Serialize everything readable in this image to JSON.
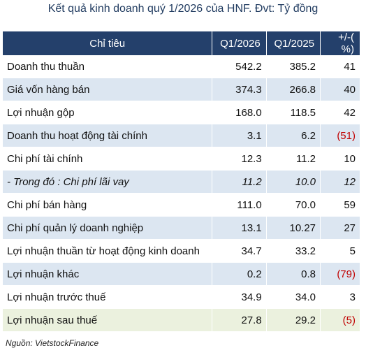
{
  "title": "Kết quả kinh doanh quý 1/2026 của HNF. Đvt: Tỷ đồng",
  "table": {
    "headers": [
      "Chỉ tiêu",
      "Q1/2026",
      "Q1/2025",
      "+/-( %)"
    ],
    "rows": [
      {
        "label": "Doanh thu thuần",
        "q1_2026": "542.2",
        "q1_2025": "385.2",
        "change": "41",
        "negative": false,
        "italic": false
      },
      {
        "label": "Giá vốn hàng bán",
        "q1_2026": "374.3",
        "q1_2025": "266.8",
        "change": "40",
        "negative": false,
        "italic": false
      },
      {
        "label": "Lợi nhuận gộp",
        "q1_2026": "168.0",
        "q1_2025": "118.5",
        "change": "42",
        "negative": false,
        "italic": false
      },
      {
        "label": "Doanh thu hoạt động tài chính",
        "q1_2026": "3.1",
        "q1_2025": "6.2",
        "change": "(51)",
        "negative": true,
        "italic": false
      },
      {
        "label": "Chi phí tài chính",
        "q1_2026": "12.3",
        "q1_2025": "11.2",
        "change": "10",
        "negative": false,
        "italic": false
      },
      {
        "label": "- Trong đó : Chi phí lãi vay",
        "q1_2026": "11.2",
        "q1_2025": "10.0",
        "change": "12",
        "negative": false,
        "italic": true
      },
      {
        "label": "Chi phí bán hàng",
        "q1_2026": "111.0",
        "q1_2025": "70.0",
        "change": "59",
        "negative": false,
        "italic": false
      },
      {
        "label": "Chi phí quản lý doanh nghiệp",
        "q1_2026": "13.1",
        "q1_2025": "10.27",
        "change": "27",
        "negative": false,
        "italic": false
      },
      {
        "label": "Lợi nhuận thuần từ hoạt động kinh doanh",
        "q1_2026": "34.7",
        "q1_2025": "33.2",
        "change": "5",
        "negative": false,
        "italic": false
      },
      {
        "label": "Lợi nhuận khác",
        "q1_2026": "0.2",
        "q1_2025": "0.8",
        "change": "(79)",
        "negative": true,
        "italic": false
      },
      {
        "label": "Lợi nhuận trước thuế",
        "q1_2026": "34.9",
        "q1_2025": "34.0",
        "change": "3",
        "negative": false,
        "italic": false
      },
      {
        "label": "Lợi nhuận sau thuế",
        "q1_2026": "27.8",
        "q1_2025": "29.2",
        "change": "(5)",
        "negative": true,
        "italic": false
      }
    ]
  },
  "source": "Nguồn: VietstockFinance",
  "colors": {
    "header_bg": "#24406b",
    "row_alt_bg": "#dce6f1",
    "last_row_bg": "#ebf1de",
    "negative_text": "#c00000",
    "title_text": "#1f3a5f"
  }
}
